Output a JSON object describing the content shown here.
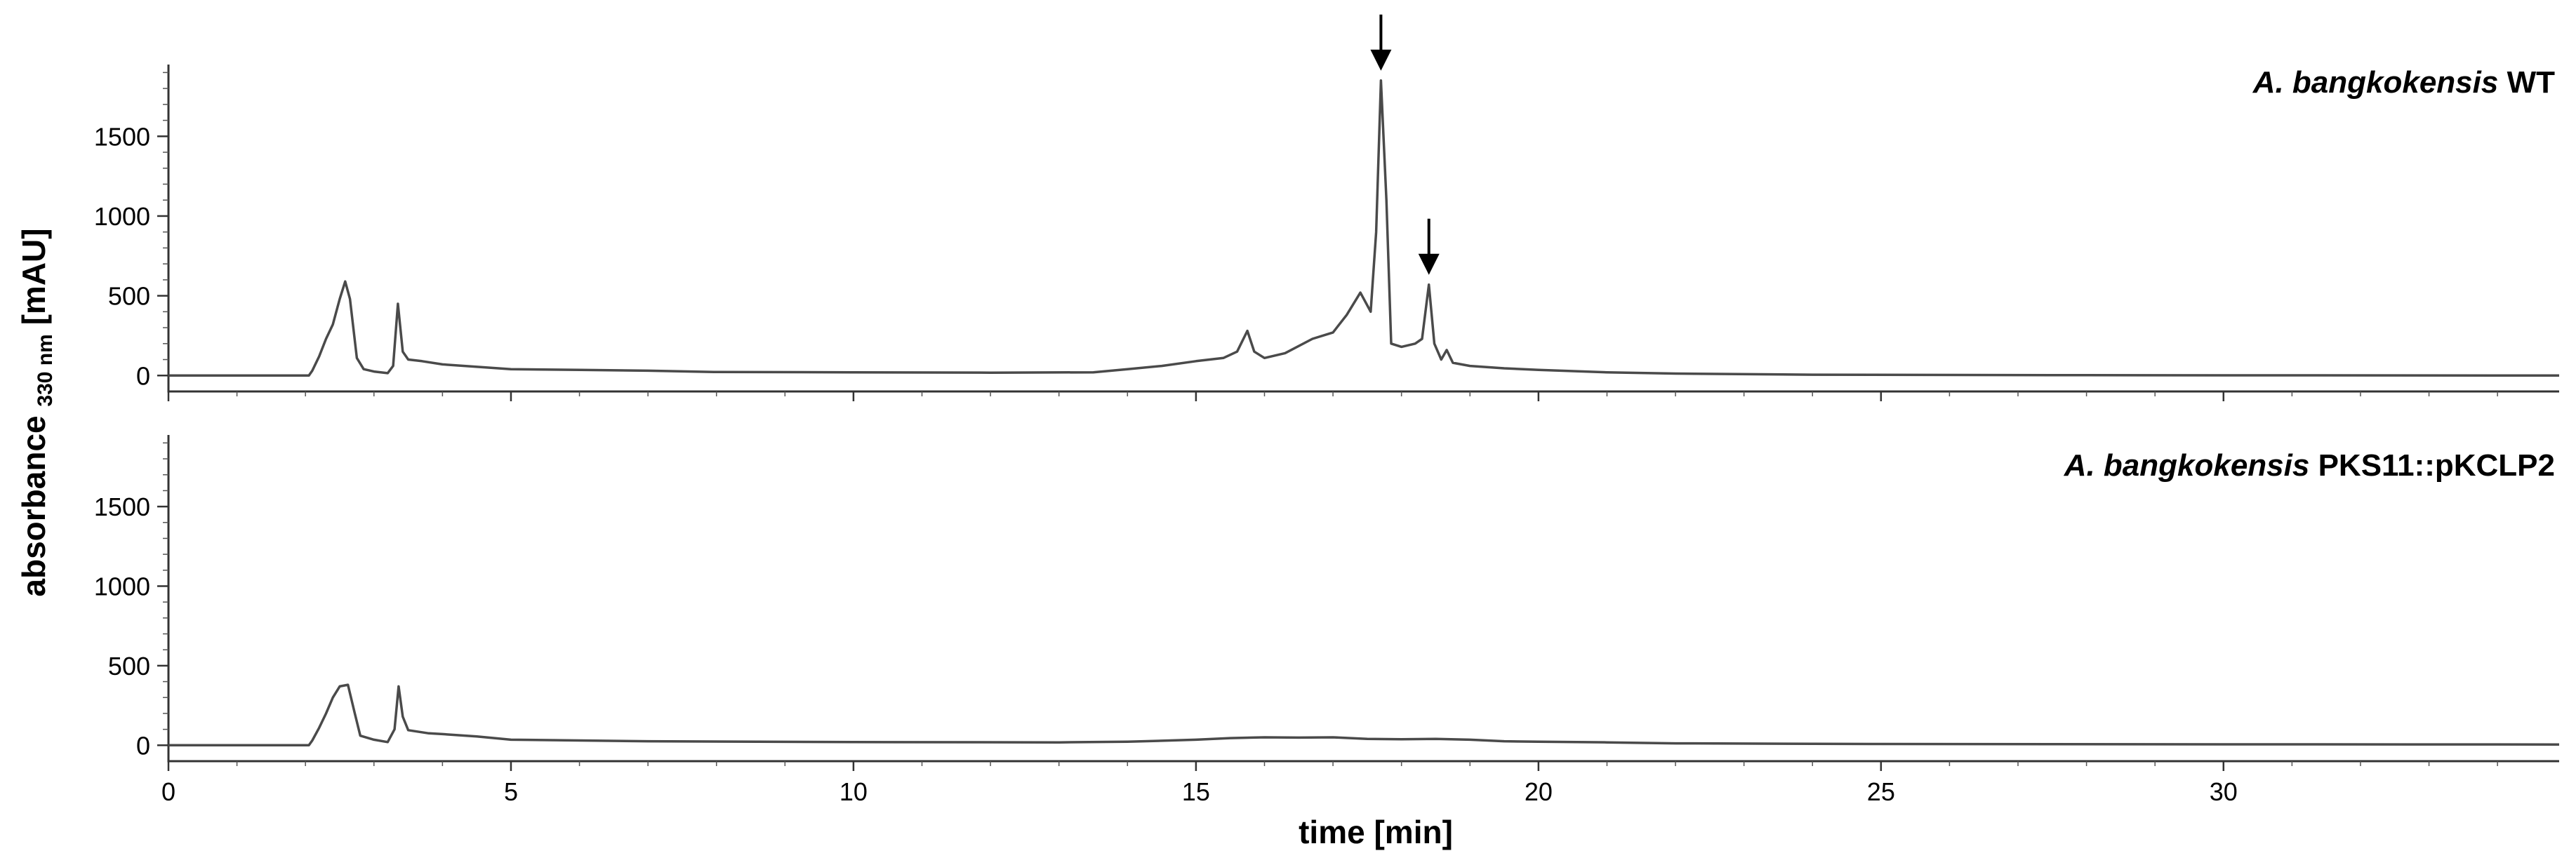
{
  "chart_data": {
    "type": "line",
    "xlabel": "time [min]",
    "ylabel": "absorbance",
    "ylabel_sub": "330 nm",
    "ylabel_unit": "[mAU]",
    "xlim": [
      0,
      34.9
    ],
    "x_ticks": [
      0,
      5,
      10,
      15,
      20,
      25,
      30
    ],
    "ylim": [
      -100,
      1950
    ],
    "y_ticks": [
      0,
      500,
      1000,
      1500
    ],
    "grid": false,
    "panels": [
      {
        "label_italic": "A. bangkokensis",
        "label_rest": " WT",
        "series": {
          "name": "",
          "points": [
            [
              0,
              0
            ],
            [
              2.05,
              0
            ],
            [
              2.1,
              30
            ],
            [
              2.2,
              120
            ],
            [
              2.3,
              230
            ],
            [
              2.4,
              320
            ],
            [
              2.5,
              480
            ],
            [
              2.58,
              590
            ],
            [
              2.65,
              480
            ],
            [
              2.75,
              110
            ],
            [
              2.85,
              40
            ],
            [
              3.0,
              25
            ],
            [
              3.2,
              15
            ],
            [
              3.28,
              60
            ],
            [
              3.35,
              450
            ],
            [
              3.42,
              150
            ],
            [
              3.5,
              100
            ],
            [
              3.7,
              90
            ],
            [
              4.0,
              70
            ],
            [
              5.0,
              40
            ],
            [
              6.0,
              35
            ],
            [
              7.0,
              30
            ],
            [
              8.0,
              22
            ],
            [
              10.0,
              20
            ],
            [
              12.0,
              18
            ],
            [
              13.5,
              20
            ],
            [
              14.0,
              40
            ],
            [
              14.5,
              60
            ],
            [
              15.0,
              90
            ],
            [
              15.4,
              110
            ],
            [
              15.6,
              150
            ],
            [
              15.75,
              280
            ],
            [
              15.85,
              150
            ],
            [
              16.0,
              110
            ],
            [
              16.3,
              140
            ],
            [
              16.7,
              230
            ],
            [
              17.0,
              270
            ],
            [
              17.2,
              380
            ],
            [
              17.4,
              520
            ],
            [
              17.55,
              400
            ],
            [
              17.63,
              900
            ],
            [
              17.7,
              1850
            ],
            [
              17.78,
              1100
            ],
            [
              17.85,
              200
            ],
            [
              18.0,
              180
            ],
            [
              18.2,
              200
            ],
            [
              18.3,
              230
            ],
            [
              18.4,
              570
            ],
            [
              18.48,
              200
            ],
            [
              18.58,
              100
            ],
            [
              18.66,
              160
            ],
            [
              18.75,
              80
            ],
            [
              19.0,
              60
            ],
            [
              19.5,
              45
            ],
            [
              20.0,
              35
            ],
            [
              21.0,
              20
            ],
            [
              22.0,
              12
            ],
            [
              24.0,
              5
            ],
            [
              28.0,
              2
            ],
            [
              34.9,
              0
            ]
          ]
        },
        "arrows_at_x": [
          17.7,
          18.4
        ],
        "arrows_y": [
          1850,
          570
        ]
      },
      {
        "label_italic": "A. bangkokensis",
        "label_rest": " PKS11::pKCLP2",
        "series": {
          "name": "",
          "points": [
            [
              0,
              0
            ],
            [
              2.05,
              0
            ],
            [
              2.1,
              30
            ],
            [
              2.2,
              110
            ],
            [
              2.3,
              200
            ],
            [
              2.4,
              300
            ],
            [
              2.5,
              370
            ],
            [
              2.62,
              380
            ],
            [
              2.72,
              200
            ],
            [
              2.8,
              60
            ],
            [
              3.0,
              35
            ],
            [
              3.2,
              20
            ],
            [
              3.3,
              100
            ],
            [
              3.36,
              370
            ],
            [
              3.42,
              180
            ],
            [
              3.5,
              95
            ],
            [
              3.8,
              75
            ],
            [
              4.0,
              70
            ],
            [
              4.5,
              55
            ],
            [
              5.0,
              35
            ],
            [
              7.0,
              25
            ],
            [
              10.0,
              20
            ],
            [
              13.0,
              18
            ],
            [
              14.0,
              22
            ],
            [
              15.0,
              35
            ],
            [
              15.5,
              45
            ],
            [
              16.0,
              50
            ],
            [
              16.5,
              48
            ],
            [
              17.0,
              50
            ],
            [
              17.5,
              40
            ],
            [
              18.0,
              38
            ],
            [
              18.5,
              40
            ],
            [
              19.0,
              35
            ],
            [
              19.5,
              25
            ],
            [
              20.0,
              22
            ],
            [
              21.0,
              18
            ],
            [
              22.0,
              12
            ],
            [
              25.0,
              8
            ],
            [
              30.0,
              6
            ],
            [
              34.9,
              5
            ]
          ]
        }
      }
    ]
  }
}
